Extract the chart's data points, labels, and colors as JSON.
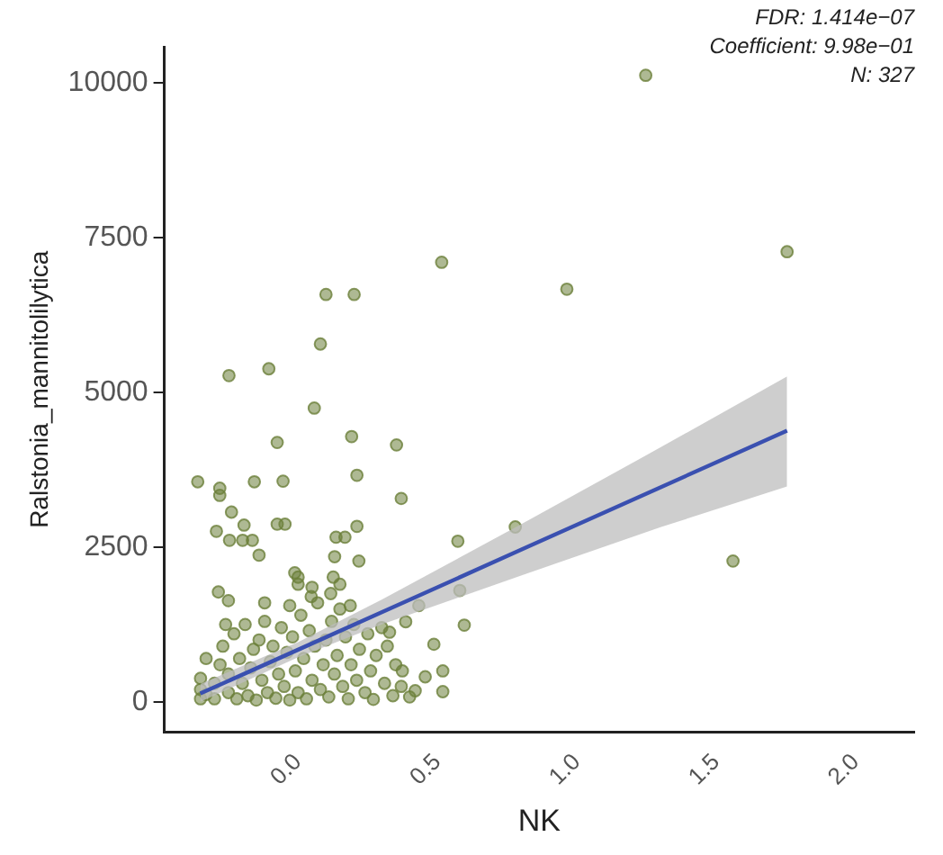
{
  "chart_data": {
    "type": "scatter",
    "xlabel": "NK",
    "ylabel": "Ralstonia_mannitolilytica",
    "annotations": [
      "FDR: 1.414e−07",
      "Coefficient: 9.98e−01",
      "N: 327"
    ],
    "xlim": [
      -0.48,
      2.21
    ],
    "ylim": [
      -490,
      10580
    ],
    "xticks": [
      {
        "value": 0,
        "label": "0.0"
      },
      0.5,
      {
        "value": 1,
        "label": "1.0"
      },
      1.5,
      {
        "value": 2,
        "label": "2.0"
      }
    ],
    "yticks": [
      0,
      2500,
      5000,
      7500,
      10000
    ],
    "grid": false,
    "legend": false,
    "marker": "circle",
    "series": [
      {
        "color": "#6b7f3a",
        "x": [
          1.247,
          1.754,
          0.964,
          0.515,
          0.1,
          0.201,
          0.08,
          -0.248,
          -0.105,
          0.058,
          -0.075,
          0.192,
          0.353,
          -0.36,
          -0.281,
          -0.281,
          -0.157,
          -0.054,
          0.211,
          0.37,
          -0.239,
          -0.194,
          -0.075,
          -0.047,
          -0.293,
          -0.246,
          -0.199,
          -0.164,
          -0.14,
          0.136,
          0.168,
          0.211,
          0.779,
          0.573,
          1.56,
          0.131,
          0.218,
          -0.012,
          0.0,
          0.126,
          -0.286,
          -0.25,
          -0.03,
          0.047,
          0.117,
          0.187,
          0.58,
          0.433,
          0.596,
          0.386,
          0.328,
          0.487,
          0.456,
          0.519,
          0.519,
          0.374,
          -0.35,
          -0.35,
          -0.35,
          -0.33,
          -0.3,
          -0.3,
          -0.28,
          -0.27,
          -0.25,
          -0.25,
          -0.23,
          -0.22,
          -0.21,
          -0.2,
          -0.19,
          -0.18,
          -0.17,
          -0.16,
          -0.15,
          -0.14,
          -0.13,
          -0.12,
          -0.11,
          -0.1,
          -0.09,
          -0.08,
          -0.07,
          -0.06,
          -0.05,
          -0.04,
          -0.03,
          -0.02,
          -0.01,
          0.0,
          0.01,
          0.02,
          0.03,
          0.04,
          0.05,
          0.06,
          0.07,
          0.08,
          0.09,
          0.1,
          0.11,
          0.12,
          0.13,
          0.14,
          0.15,
          0.16,
          0.17,
          0.18,
          0.19,
          0.2,
          0.21,
          0.22,
          0.24,
          0.25,
          0.26,
          0.27,
          0.28,
          0.3,
          0.31,
          0.32,
          0.34,
          0.35,
          0.37,
          0.4,
          0.42,
          -0.33,
          -0.26,
          -0.12,
          0.05,
          0.15,
          0.0
        ],
        "values": [
          10120,
          7270,
          6665,
          7100,
          6580,
          6580,
          5780,
          5270,
          5380,
          4745,
          4190,
          4285,
          4150,
          3555,
          3450,
          3335,
          3555,
          3565,
          3660,
          3285,
          3065,
          2855,
          2870,
          2870,
          2755,
          2610,
          2610,
          2610,
          2370,
          2660,
          2660,
          2835,
          2825,
          2595,
          2275,
          2345,
          2275,
          2085,
          2015,
          2015,
          1775,
          1635,
          1555,
          1700,
          1750,
          1555,
          1800,
          1555,
          1240,
          1295,
          1125,
          930,
          405,
          500,
          165,
          500,
          50,
          200,
          380,
          120,
          300,
          50,
          600,
          900,
          150,
          450,
          1100,
          50,
          700,
          300,
          1250,
          100,
          550,
          850,
          30,
          1000,
          350,
          1300,
          150,
          650,
          900,
          60,
          450,
          1200,
          250,
          800,
          30,
          1050,
          500,
          150,
          1400,
          700,
          50,
          1150,
          350,
          900,
          1600,
          200,
          600,
          1000,
          80,
          1300,
          450,
          750,
          1500,
          250,
          1050,
          50,
          600,
          1250,
          350,
          850,
          150,
          1100,
          500,
          40,
          750,
          1200,
          300,
          900,
          100,
          600,
          250,
          80,
          180,
          700,
          1250,
          1600,
          1850,
          1900,
          1900
        ]
      },
      {
        "type": "line",
        "color": "#3a50b0",
        "x": [
          -0.351,
          0,
          0.3,
          0.8,
          1.3,
          1.754
        ],
        "values": [
          135,
          843,
          1448,
          2457,
          3466,
          4380
        ],
        "lower": [
          0,
          720,
          1250,
          2040,
          2820,
          3480
        ],
        "upper": [
          290,
          965,
          1650,
          2870,
          4110,
          5255
        ],
        "marker": "none"
      }
    ]
  }
}
